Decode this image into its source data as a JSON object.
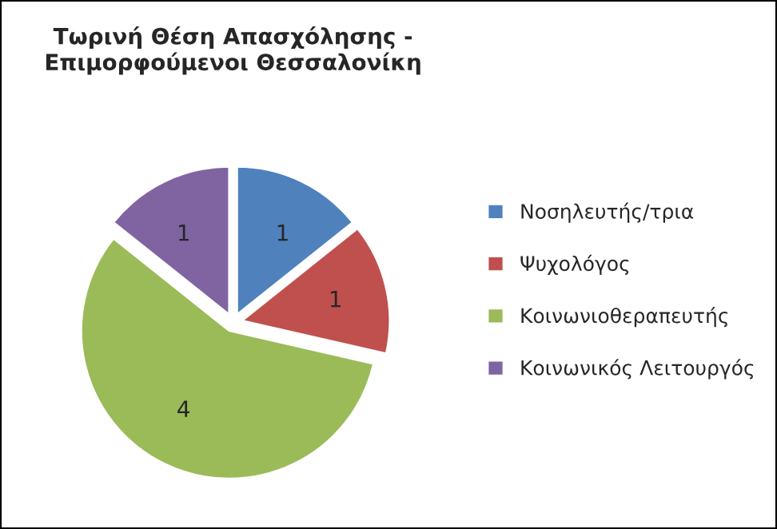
{
  "chart_data": {
    "type": "pie",
    "title": "Τωρινή Θέση Απασχόλησης - Επιμορφούμενοι Θεσσαλονίκη",
    "categories": [
      "Νοσηλευτής/τρια",
      "Ψυχολόγος",
      "Κοινωνιοθεραπευτής",
      "Κοινωνικός Λειτουργός"
    ],
    "values": [
      1,
      1,
      4,
      1
    ],
    "colors": [
      "#4f81bd",
      "#c0504d",
      "#9bbb59",
      "#8064a2"
    ],
    "data_labels": true,
    "legend": "right"
  }
}
